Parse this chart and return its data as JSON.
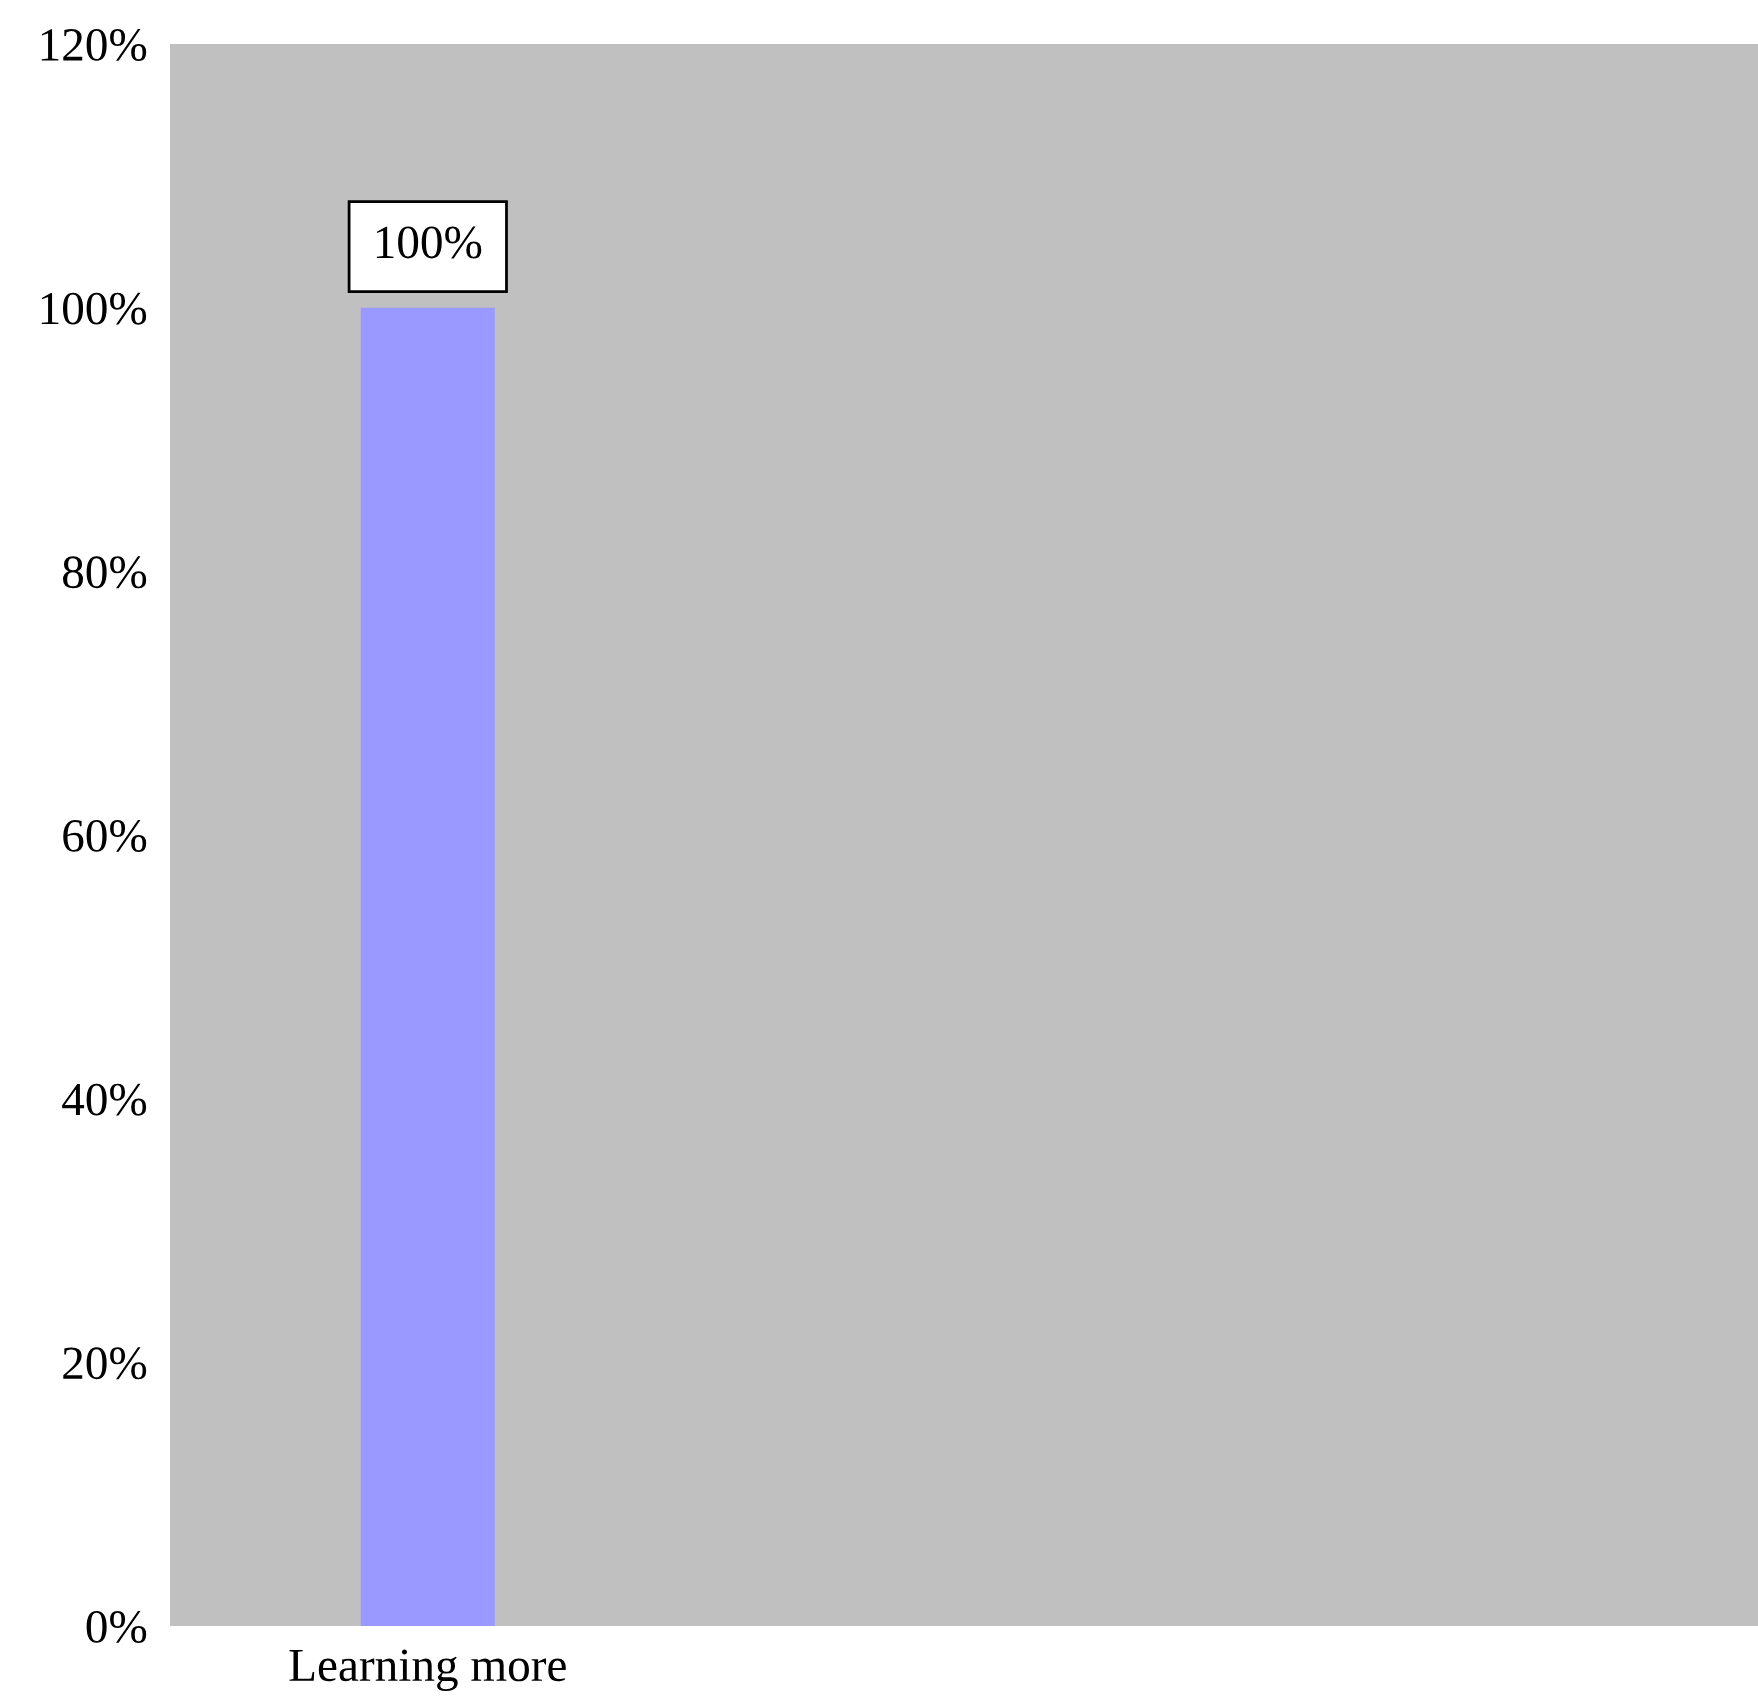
{
  "chart_data": {
    "type": "bar",
    "categories": [
      "Learning more"
    ],
    "values": [
      100
    ],
    "color": "#9999ff",
    "value_labels": [
      "100%"
    ],
    "ylim": [
      0,
      120
    ],
    "yticks": [
      {
        "value": 0,
        "label": "0%"
      },
      {
        "value": 20,
        "label": "20%"
      },
      {
        "value": 40,
        "label": "40%"
      },
      {
        "value": 60,
        "label": "60%"
      },
      {
        "value": 80,
        "label": "80%"
      },
      {
        "value": 100,
        "label": "100%"
      },
      {
        "value": 120,
        "label": "120%"
      }
    ],
    "grid": false
  }
}
